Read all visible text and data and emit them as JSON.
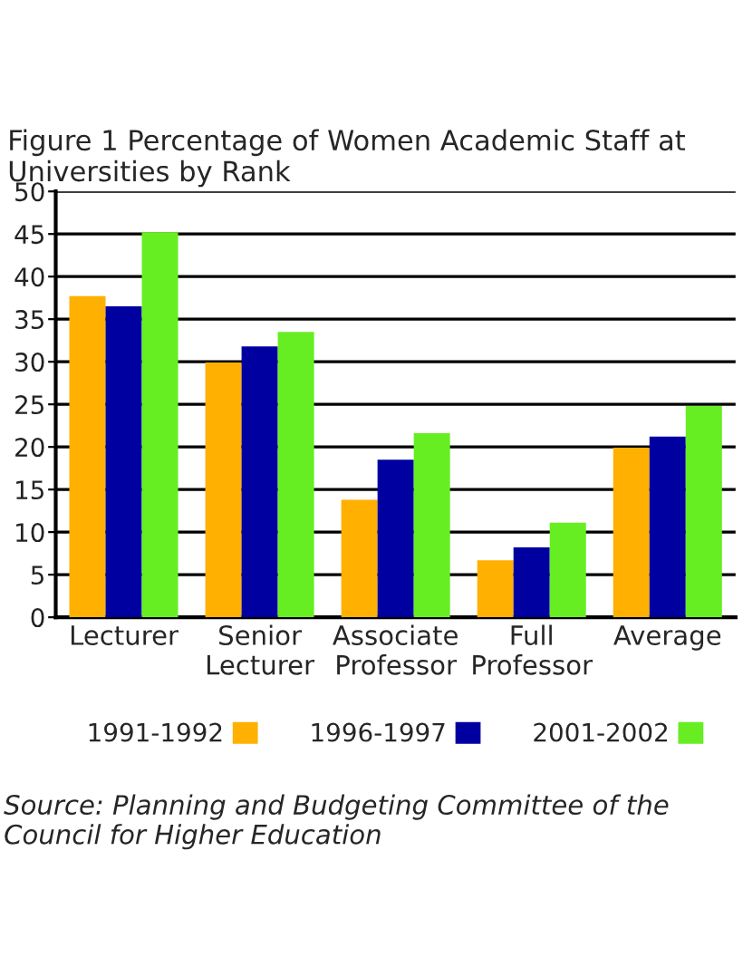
{
  "chart_data": {
    "type": "bar",
    "title": "Figure 1 Percentage of Women Academic Staff at Universities by Rank",
    "categories": [
      "Lecturer",
      "Senior Lecturer",
      "Associate Professor",
      "Full Professor",
      "Average"
    ],
    "series": [
      {
        "name": "1991-1992",
        "color": "#ffb000",
        "values": [
          37.7,
          29.9,
          13.8,
          6.7,
          19.9
        ]
      },
      {
        "name": "1996-1997",
        "color": "#0000a0",
        "values": [
          36.5,
          31.8,
          18.5,
          8.2,
          21.2
        ]
      },
      {
        "name": "2001-2002",
        "color": "#66ee22",
        "values": [
          45.2,
          33.5,
          21.6,
          11.1,
          24.8
        ]
      }
    ],
    "ylim": [
      0,
      50
    ],
    "yticks": [
      0,
      5,
      10,
      15,
      20,
      25,
      30,
      35,
      40,
      45,
      50
    ],
    "grid": "y",
    "legend": "bottom",
    "annotations": [
      "Source: Planning and Budgeting Committee of the Council for Higher Education"
    ]
  }
}
